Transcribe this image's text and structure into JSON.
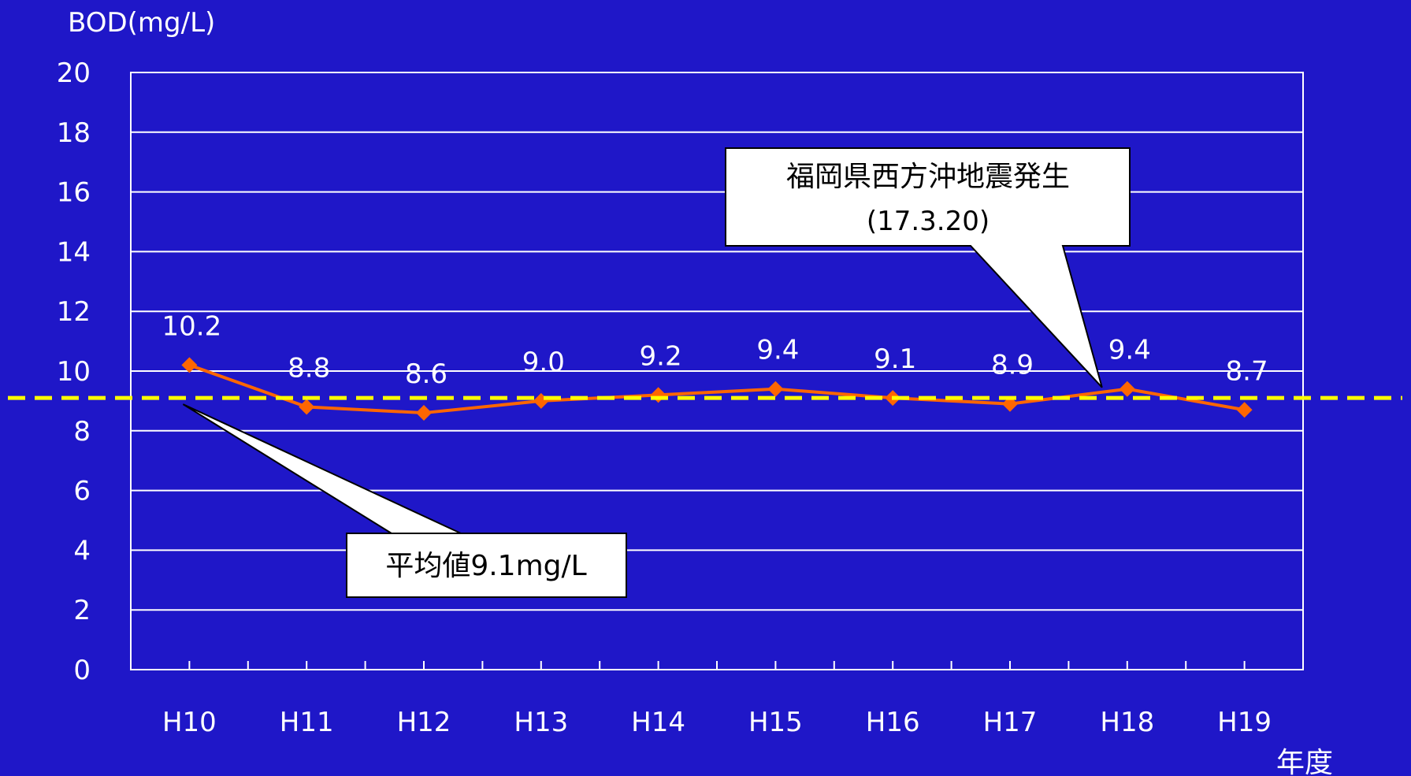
{
  "chart_data": {
    "type": "line",
    "ylabel": "BOD(mg/L)",
    "xlabel": "年度",
    "categories": [
      "H10",
      "H11",
      "H12",
      "H13",
      "H14",
      "H15",
      "H16",
      "H17",
      "H18",
      "H19"
    ],
    "series": [
      {
        "values": [
          10.2,
          8.8,
          8.6,
          9.0,
          9.2,
          9.4,
          9.1,
          8.9,
          9.4,
          8.7
        ],
        "data_labels": [
          "10.2",
          "8.8",
          "8.6",
          "9.0",
          "9.2",
          "9.4",
          "9.1",
          "8.9",
          "9.4",
          "8.7"
        ],
        "color": "#ff6600"
      }
    ],
    "yticks": [
      "0",
      "2",
      "4",
      "6",
      "8",
      "10",
      "12",
      "14",
      "16",
      "18",
      "20"
    ],
    "ylim": [
      0,
      20
    ],
    "grid": true,
    "reference_line": {
      "value": 9.1,
      "color": "#ffff00",
      "style": "dashed"
    },
    "annotations": [
      {
        "lines": [
          "平均値9.1mg/L"
        ],
        "target_category": "H10",
        "target_value": 9.1
      },
      {
        "lines": [
          "福岡県西方沖地震発生",
          "(17.3.20)"
        ],
        "target_category": "H18",
        "target_value": 9.4
      }
    ],
    "colors": {
      "background": "#1f17c8",
      "grid": "#ffffff",
      "text": "#ffffff",
      "callout_fill": "#ffffff",
      "callout_text": "#000000"
    }
  }
}
